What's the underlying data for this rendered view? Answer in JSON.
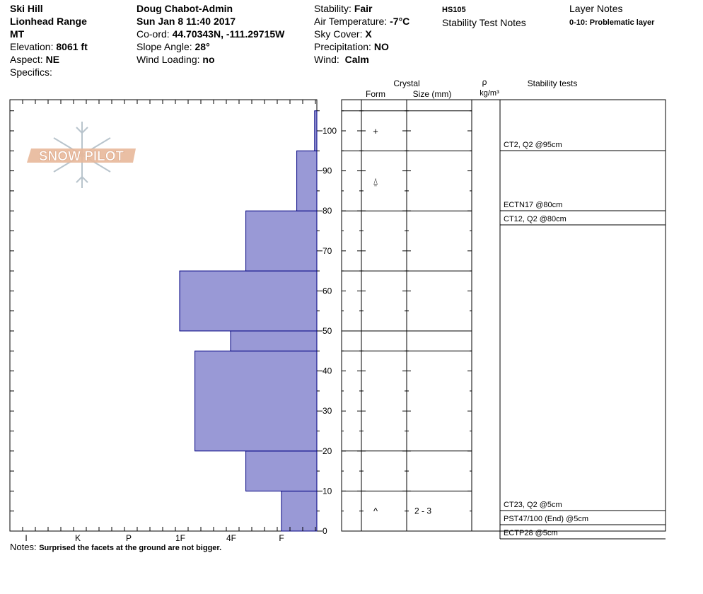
{
  "header": {
    "col1": {
      "location": "Ski Hill",
      "range": "Lionhead Range",
      "state": "MT",
      "elevation_label": "Elevation:",
      "elevation_value": "8061 ft",
      "aspect_label": "Aspect:",
      "aspect_value": "NE",
      "specifics_label": "Specifics:"
    },
    "col2": {
      "observer": "Doug Chabot-Admin",
      "datetime": "Sun Jan 8 11:40 2017",
      "coord_label": "Co-ord:",
      "coord_value": "44.70343N, -111.29715W",
      "slope_label": "Slope Angle:",
      "slope_value": "28°",
      "wind_loading_label": "Wind Loading:",
      "wind_loading_value": "no"
    },
    "col3": {
      "stability_label": "Stability:",
      "stability_value": "Fair",
      "air_temp_label": "Air Temperature:",
      "air_temp_value": "-7°C",
      "sky_label": "Sky Cover:",
      "sky_value": "X",
      "precip_label": "Precipitation:",
      "precip_value": "NO",
      "wind_label": "Wind:",
      "wind_value": "Calm"
    },
    "col4": {
      "hs": "HS105",
      "stability_notes_title": "Stability Test Notes"
    },
    "col5": {
      "layer_notes_title": "Layer Notes",
      "problematic": "0-10: Problematic layer"
    }
  },
  "logo": {
    "text": "SNOW PILOT"
  },
  "table_headers": {
    "crystal": "Crystal",
    "form": "Form",
    "size": "Size (mm)",
    "rho": "ρ",
    "density_unit": "kg/m³",
    "stability_tests": "Stability tests"
  },
  "notes": {
    "label": "Notes:",
    "text": "Surprised the facets at the ground are not bigger."
  },
  "colors": {
    "hardness_fill": "#9999d6",
    "hardness_stroke": "#000080",
    "logo": "#e8b89a"
  },
  "chart_data": {
    "type": "bar",
    "orientation": "horizontal",
    "title": "",
    "xlabel": "",
    "ylabel": "",
    "ylim": [
      0,
      107
    ],
    "y_ticks": [
      "0",
      "10",
      "20",
      "30",
      "40",
      "50",
      "60",
      "70",
      "80",
      "90",
      "100"
    ],
    "hardness_ticks": [
      "I",
      "K",
      "P",
      "1F",
      "4F",
      "F"
    ],
    "layers": [
      {
        "bottom": 0,
        "top": 10,
        "hardness": 1.0
      },
      {
        "bottom": 10,
        "top": 20,
        "hardness": 1.7
      },
      {
        "bottom": 20,
        "top": 45,
        "hardness": 2.7
      },
      {
        "bottom": 45,
        "top": 50,
        "hardness": 2.0
      },
      {
        "bottom": 50,
        "top": 65,
        "hardness": 3.0
      },
      {
        "bottom": 65,
        "top": 80,
        "hardness": 1.7
      },
      {
        "bottom": 80,
        "top": 95,
        "hardness": 0.7
      },
      {
        "bottom": 95,
        "top": 105,
        "hardness": 0.35
      }
    ],
    "layer_boundaries": [
      10,
      20,
      45,
      50,
      65,
      80,
      95,
      105
    ],
    "crystal_forms": [
      {
        "depth": 100,
        "symbol": "+"
      },
      {
        "depth": 87.5,
        "symbol": "⍙"
      },
      {
        "depth": 5,
        "symbol": "^"
      }
    ],
    "crystal_sizes": [
      {
        "depth": 5,
        "text": "2 - 3"
      }
    ],
    "stability_tests": [
      {
        "text": "CT2, Q2 @95cm"
      },
      {
        "text": "ECTN17 @80cm"
      },
      {
        "text": "CT12, Q2 @80cm"
      },
      {
        "text": "CT23, Q2 @5cm"
      },
      {
        "text": "PST47/100 (End) @5cm"
      },
      {
        "text": "ECTP28 @5cm"
      }
    ]
  }
}
